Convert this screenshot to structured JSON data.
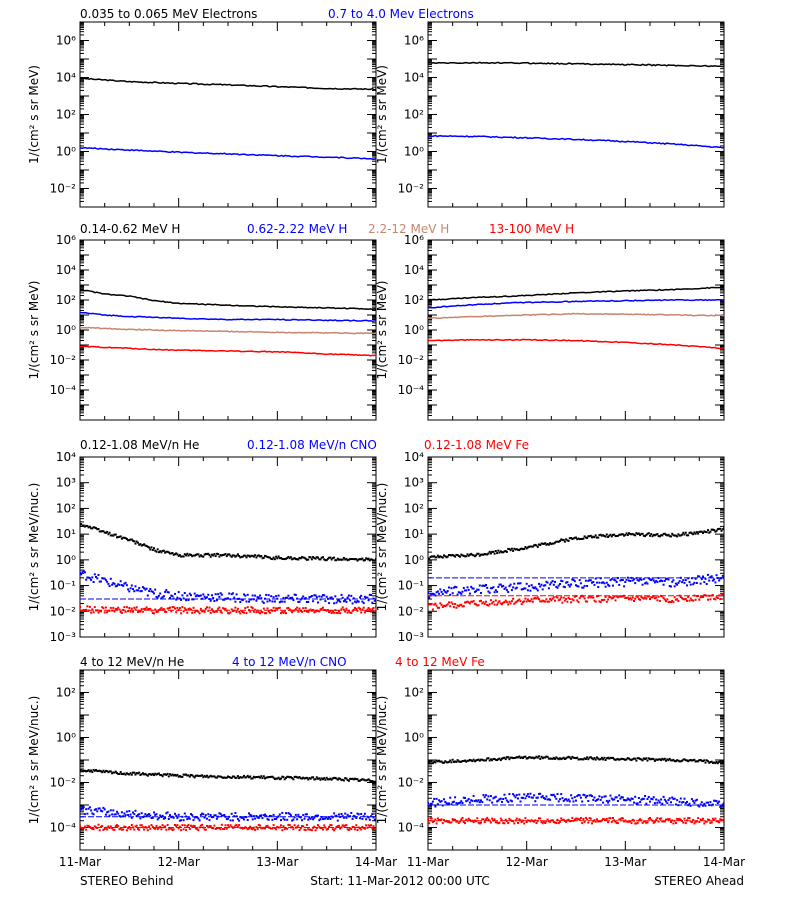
{
  "figure": {
    "footer": {
      "left": "STEREO Behind",
      "center": "Start: 11-Mar-2012 00:00 UTC",
      "right": "STEREO Ahead"
    },
    "x_tick_labels": [
      "11-Mar",
      "12-Mar",
      "13-Mar",
      "14-Mar"
    ]
  },
  "chart_data": [
    {
      "type": "line",
      "row": 1,
      "panel": "STEREO Behind",
      "ylabel": "1/(cm² s sr MeV)",
      "yscale": "log",
      "ylim": [
        0.001,
        10000000
      ],
      "y_ticks": [
        {
          "exp": -2,
          "label": "10⁻²"
        },
        {
          "exp": 0,
          "label": "10⁰"
        },
        {
          "exp": 2,
          "label": "10²"
        },
        {
          "exp": 4,
          "label": "10⁴"
        },
        {
          "exp": 6,
          "label": "10⁶"
        }
      ],
      "x": [
        0,
        0.5,
        1,
        1.5,
        2,
        2.5,
        3
      ],
      "series": [
        {
          "name": "0.035 to 0.065 MeV Electrons",
          "color": "#000000",
          "values": [
            9000,
            6000,
            4800,
            4000,
            3200,
            2600,
            2300
          ]
        },
        {
          "name": "0.7 to 4.0 Mev Electrons",
          "color": "#0000ff",
          "values": [
            1.6,
            1.2,
            0.9,
            0.75,
            0.6,
            0.5,
            0.4
          ]
        }
      ]
    },
    {
      "type": "line",
      "row": 1,
      "panel": "STEREO Ahead",
      "ylabel": "1/(cm² s sr MeV)",
      "yscale": "log",
      "ylim": [
        0.001,
        10000000
      ],
      "y_ticks": [
        {
          "exp": -2,
          "label": "10⁻²"
        },
        {
          "exp": 0,
          "label": "10⁰"
        },
        {
          "exp": 2,
          "label": "10²"
        },
        {
          "exp": 4,
          "label": "10⁴"
        },
        {
          "exp": 6,
          "label": "10⁶"
        }
      ],
      "x": [
        0,
        0.5,
        1,
        1.5,
        2,
        2.5,
        3
      ],
      "series": [
        {
          "name": "",
          "color": "#000000",
          "values": [
            60000,
            62000,
            60000,
            55000,
            50000,
            45000,
            40000
          ]
        },
        {
          "name": "",
          "color": "#0000ff",
          "values": [
            7,
            6.5,
            5.5,
            4.5,
            3.5,
            2.5,
            1.6
          ]
        }
      ]
    },
    {
      "type": "line",
      "row": 2,
      "panel": "STEREO Behind",
      "ylabel": "1/(cm² s sr MeV)",
      "yscale": "log",
      "ylim": [
        1e-06,
        1000000
      ],
      "y_ticks": [
        {
          "exp": -4,
          "label": "10⁻⁴"
        },
        {
          "exp": -2,
          "label": "10⁻²"
        },
        {
          "exp": 0,
          "label": "10⁰"
        },
        {
          "exp": 2,
          "label": "10²"
        },
        {
          "exp": 4,
          "label": "10⁴"
        },
        {
          "exp": 6,
          "label": "10⁶"
        }
      ],
      "x": [
        0,
        0.25,
        0.5,
        0.75,
        1,
        1.5,
        2,
        2.5,
        3
      ],
      "series": [
        {
          "name": "0.14-0.62 MeV H",
          "color": "#000000",
          "values": [
            500,
            250,
            180,
            90,
            60,
            45,
            35,
            30,
            25
          ]
        },
        {
          "name": "0.62-2.22 MeV H",
          "color": "#0000ff",
          "values": [
            15,
            10,
            8,
            7,
            6,
            5,
            5,
            4.5,
            4
          ]
        },
        {
          "name": "2.2-12 MeV H",
          "color": "#c8866e",
          "values": [
            1.5,
            1.3,
            1.1,
            1.0,
            0.9,
            0.8,
            0.7,
            0.65,
            0.6
          ]
        },
        {
          "name": "13-100 MeV H",
          "color": "#ff0000",
          "values": [
            0.08,
            0.07,
            0.06,
            0.05,
            0.045,
            0.04,
            0.035,
            0.025,
            0.02
          ]
        }
      ]
    },
    {
      "type": "line",
      "row": 2,
      "panel": "STEREO Ahead",
      "ylabel": "1/(cm² s sr MeV)",
      "yscale": "log",
      "ylim": [
        1e-06,
        1000000
      ],
      "y_ticks": [
        {
          "exp": -4,
          "label": "10⁻⁴"
        },
        {
          "exp": -2,
          "label": "10⁻²"
        },
        {
          "exp": 0,
          "label": "10⁰"
        },
        {
          "exp": 2,
          "label": "10²"
        },
        {
          "exp": 4,
          "label": "10⁴"
        },
        {
          "exp": 6,
          "label": "10⁶"
        }
      ],
      "x": [
        0,
        0.5,
        1,
        1.5,
        2,
        2.5,
        3
      ],
      "series": [
        {
          "name": "",
          "color": "#000000",
          "values": [
            100,
            150,
            200,
            300,
            400,
            500,
            700
          ]
        },
        {
          "name": "",
          "color": "#0000ff",
          "values": [
            30,
            50,
            70,
            80,
            90,
            100,
            100
          ]
        },
        {
          "name": "",
          "color": "#c8866e",
          "values": [
            6,
            8,
            10,
            12,
            11,
            10,
            9
          ]
        },
        {
          "name": "",
          "color": "#ff0000",
          "values": [
            0.2,
            0.22,
            0.22,
            0.2,
            0.15,
            0.1,
            0.06
          ]
        }
      ]
    },
    {
      "type": "scatter",
      "row": 3,
      "panel": "STEREO Behind",
      "ylabel": "1/(cm² s sr MeV/nuc.)",
      "yscale": "log",
      "ylim": [
        0.001,
        10000
      ],
      "y_ticks": [
        {
          "exp": -3,
          "label": "10⁻³"
        },
        {
          "exp": -2,
          "label": "10⁻²"
        },
        {
          "exp": -1,
          "label": "10⁻¹"
        },
        {
          "exp": 0,
          "label": "10⁰"
        },
        {
          "exp": 1,
          "label": "10¹"
        },
        {
          "exp": 2,
          "label": "10²"
        },
        {
          "exp": 3,
          "label": "10³"
        },
        {
          "exp": 4,
          "label": "10⁴"
        }
      ],
      "x": [
        0,
        0.25,
        0.5,
        0.75,
        1,
        1.5,
        2,
        2.5,
        3
      ],
      "series": [
        {
          "name": "0.12-1.08 MeV/n He",
          "color": "#000000",
          "values": [
            25,
            12,
            6,
            2.5,
            1.5,
            1.5,
            1.2,
            1.1,
            1.0
          ]
        },
        {
          "name": "0.12-1.08 MeV/n CNO",
          "color": "#0000ff",
          "values": [
            0.3,
            0.15,
            0.08,
            0.05,
            0.04,
            0.035,
            0.03,
            0.03,
            0.03
          ]
        },
        {
          "name": "0.12-1.08 MeV Fe",
          "color": "#ff0000",
          "values": [
            0.012,
            0.011,
            0.011,
            0.011,
            0.011,
            0.011,
            0.011,
            0.011,
            0.011
          ]
        }
      ]
    },
    {
      "type": "scatter",
      "row": 3,
      "panel": "STEREO Ahead",
      "ylabel": "1/(cm² s sr MeV/nuc.)",
      "yscale": "log",
      "ylim": [
        0.001,
        10000
      ],
      "y_ticks": [
        {
          "exp": -3,
          "label": "10⁻³"
        },
        {
          "exp": -2,
          "label": "10⁻²"
        },
        {
          "exp": -1,
          "label": "10⁻¹"
        },
        {
          "exp": 0,
          "label": "10⁰"
        },
        {
          "exp": 1,
          "label": "10¹"
        },
        {
          "exp": 2,
          "label": "10²"
        },
        {
          "exp": 3,
          "label": "10³"
        },
        {
          "exp": 4,
          "label": "10⁴"
        }
      ],
      "x": [
        0,
        0.5,
        1,
        1.5,
        2,
        2.5,
        3
      ],
      "series": [
        {
          "name": "",
          "color": "#000000",
          "values": [
            1.2,
            1.6,
            3,
            7,
            10,
            9,
            15
          ]
        },
        {
          "name": "",
          "color": "#0000ff",
          "values": [
            0.05,
            0.07,
            0.09,
            0.12,
            0.14,
            0.13,
            0.2
          ]
        },
        {
          "name": "",
          "color": "#ff0000",
          "values": [
            0.015,
            0.02,
            0.025,
            0.03,
            0.03,
            0.03,
            0.04
          ]
        }
      ]
    },
    {
      "type": "scatter",
      "row": 4,
      "panel": "STEREO Behind",
      "ylabel": "1/(cm² s sr MeV/nuc.)",
      "yscale": "log",
      "ylim": [
        1e-05,
        1000
      ],
      "y_ticks": [
        {
          "exp": -4,
          "label": "10⁻⁴"
        },
        {
          "exp": -2,
          "label": "10⁻²"
        },
        {
          "exp": 0,
          "label": "10⁰"
        },
        {
          "exp": 2,
          "label": "10²"
        }
      ],
      "x": [
        0,
        0.5,
        1,
        1.5,
        2,
        2.5,
        3
      ],
      "series": [
        {
          "name": "4 to 12 MeV/n He",
          "color": "#000000",
          "values": [
            0.035,
            0.025,
            0.02,
            0.018,
            0.016,
            0.015,
            0.012
          ]
        },
        {
          "name": "4 to 12 MeV/n CNO",
          "color": "#0000ff",
          "values": [
            0.0006,
            0.0004,
            0.0003,
            0.0003,
            0.0003,
            0.0003,
            0.0003
          ]
        },
        {
          "name": "4 to 12 MeV Fe",
          "color": "#ff0000",
          "values": [
            0.0001,
            0.0001,
            0.0001,
            0.0001,
            0.0001,
            0.0001,
            0.0001
          ]
        }
      ]
    },
    {
      "type": "scatter",
      "row": 4,
      "panel": "STEREO Ahead",
      "ylabel": "1/(cm² s sr MeV/nuc.)",
      "yscale": "log",
      "ylim": [
        1e-05,
        1000
      ],
      "y_ticks": [
        {
          "exp": -4,
          "label": "10⁻⁴"
        },
        {
          "exp": -2,
          "label": "10⁻²"
        },
        {
          "exp": 0,
          "label": "10⁰"
        },
        {
          "exp": 2,
          "label": "10²"
        }
      ],
      "x": [
        0,
        0.5,
        1,
        1.5,
        2,
        2.5,
        3
      ],
      "series": [
        {
          "name": "",
          "color": "#000000",
          "values": [
            0.08,
            0.1,
            0.13,
            0.12,
            0.11,
            0.1,
            0.08
          ]
        },
        {
          "name": "",
          "color": "#0000ff",
          "values": [
            0.0012,
            0.0018,
            0.0022,
            0.002,
            0.0018,
            0.0015,
            0.001
          ]
        },
        {
          "name": "",
          "color": "#ff0000",
          "values": [
            0.0002,
            0.0002,
            0.0002,
            0.0002,
            0.0002,
            0.0002,
            0.0002
          ]
        }
      ]
    }
  ]
}
